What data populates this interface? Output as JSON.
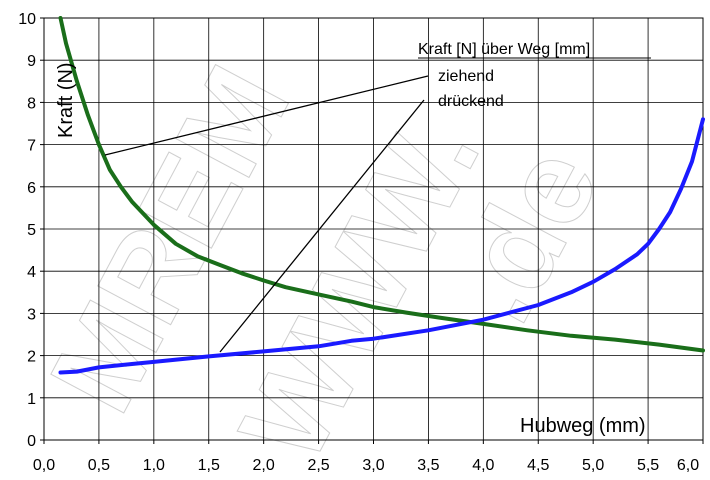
{
  "chart_data": {
    "type": "line",
    "title": "",
    "xlabel": "Hubweg (mm)",
    "ylabel": "Kraft (N)",
    "xlim": [
      0,
      6
    ],
    "ylim": [
      0,
      10
    ],
    "x_ticks": [
      "0,0",
      "0,5",
      "1,0",
      "1,5",
      "2,0",
      "2,5",
      "3,0",
      "3,5",
      "4,0",
      "4,5",
      "5,0",
      "5,5",
      "6,0"
    ],
    "y_ticks": [
      "0",
      "1",
      "2",
      "3",
      "4",
      "5",
      "6",
      "7",
      "8",
      "9",
      "10"
    ],
    "grid": true,
    "legend": {
      "title": "Kraft [N] über Weg [mm]",
      "entries": [
        "ziehend",
        "drückend"
      ],
      "placement": "top-right"
    },
    "series": [
      {
        "name": "ziehend",
        "color": "#1a6e1a",
        "x": [
          0.15,
          0.2,
          0.3,
          0.4,
          0.5,
          0.6,
          0.7,
          0.8,
          1.0,
          1.2,
          1.4,
          1.6,
          1.8,
          2.0,
          2.2,
          2.5,
          2.8,
          3.0,
          3.3,
          3.6,
          4.0,
          4.4,
          4.8,
          5.2,
          5.6,
          6.0
        ],
        "y": [
          10.0,
          9.4,
          8.5,
          7.7,
          7.0,
          6.4,
          6.0,
          5.65,
          5.1,
          4.65,
          4.35,
          4.15,
          3.95,
          3.78,
          3.62,
          3.45,
          3.28,
          3.15,
          3.02,
          2.9,
          2.75,
          2.6,
          2.47,
          2.38,
          2.26,
          2.12
        ]
      },
      {
        "name": "drückend",
        "color": "#1a1aff",
        "x": [
          0.15,
          0.3,
          0.5,
          0.8,
          1.0,
          1.5,
          2.0,
          2.5,
          2.8,
          3.0,
          3.5,
          4.0,
          4.5,
          4.8,
          5.0,
          5.2,
          5.4,
          5.5,
          5.6,
          5.7,
          5.8,
          5.9,
          6.0
        ],
        "y": [
          1.6,
          1.62,
          1.72,
          1.8,
          1.85,
          1.98,
          2.1,
          2.22,
          2.35,
          2.4,
          2.6,
          2.85,
          3.2,
          3.5,
          3.75,
          4.05,
          4.4,
          4.65,
          5.0,
          5.4,
          5.95,
          6.6,
          7.6
        ]
      }
    ]
  }
}
